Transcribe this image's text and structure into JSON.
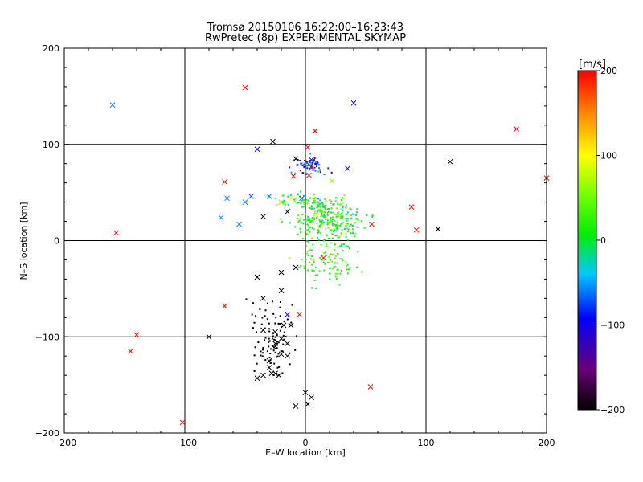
{
  "chart_data": {
    "type": "scatter",
    "title": "Tromsø 20150106 16:22:00–16:23:43",
    "subtitle": "RwPretec (8p) EXPERIMENTAL SKYMAP",
    "xlabel": "E–W location [km]",
    "ylabel": "N–S location [km]",
    "xlim": [
      -200,
      200
    ],
    "ylim": [
      -200,
      200
    ],
    "xticks": [
      -200,
      -100,
      0,
      100,
      200
    ],
    "yticks": [
      -200,
      -100,
      0,
      100,
      200
    ],
    "xtick_labels": [
      "−200",
      "−100",
      "0",
      "100",
      "200"
    ],
    "ytick_labels": [
      "200",
      "100",
      "0",
      "−100",
      "−200"
    ],
    "grid": true,
    "colorbar": {
      "label": "[m/s]",
      "min": -200,
      "max": 200,
      "ticks": [
        200,
        100,
        0,
        -100,
        -200
      ],
      "tick_labels": [
        "200",
        "100",
        "0",
        "−100",
        "−200"
      ]
    },
    "cross_points": [
      [
        -50,
        159,
        200
      ],
      [
        -27,
        103,
        -200
      ],
      [
        -40,
        95,
        -100
      ],
      [
        8,
        114,
        200
      ],
      [
        40,
        143,
        -100
      ],
      [
        -160,
        141,
        -60
      ],
      [
        175,
        116,
        200
      ],
      [
        120,
        82,
        -200
      ],
      [
        -8,
        85,
        -200
      ],
      [
        5,
        84,
        -120
      ],
      [
        2,
        97,
        200
      ],
      [
        -67,
        61,
        200
      ],
      [
        -65,
        44,
        -60
      ],
      [
        -45,
        46,
        -70
      ],
      [
        -30,
        46,
        -60
      ],
      [
        -12,
        44,
        100
      ],
      [
        -3,
        44,
        -70
      ],
      [
        -70,
        24,
        -50
      ],
      [
        -55,
        17,
        -60
      ],
      [
        -35,
        25,
        -200
      ],
      [
        -15,
        30,
        -200
      ],
      [
        -50,
        40,
        -60
      ],
      [
        -20,
        40,
        60
      ],
      [
        0,
        40,
        60
      ],
      [
        12,
        38,
        0
      ],
      [
        30,
        38,
        80
      ],
      [
        55,
        17,
        200
      ],
      [
        88,
        35,
        200
      ],
      [
        92,
        11,
        200
      ],
      [
        110,
        12,
        -200
      ],
      [
        -10,
        67,
        200
      ],
      [
        3,
        68,
        200
      ],
      [
        5,
        76,
        200
      ],
      [
        35,
        75,
        -100
      ],
      [
        22,
        62,
        60
      ],
      [
        -157,
        8,
        200
      ],
      [
        15,
        -18,
        200
      ],
      [
        -40,
        -38,
        -200
      ],
      [
        -20,
        -52,
        -200
      ],
      [
        -35,
        -60,
        -200
      ],
      [
        -67,
        -68,
        200
      ],
      [
        -15,
        -77,
        -100
      ],
      [
        -5,
        -77,
        200
      ],
      [
        -18,
        -88,
        -200
      ],
      [
        -12,
        -88,
        -200
      ],
      [
        -25,
        -95,
        -200
      ],
      [
        -35,
        -93,
        -200
      ],
      [
        -20,
        -102,
        -200
      ],
      [
        -25,
        -107,
        -200
      ],
      [
        -15,
        -107,
        -200
      ],
      [
        -140,
        -98,
        200
      ],
      [
        -80,
        -100,
        -200
      ],
      [
        -145,
        -115,
        200
      ],
      [
        -20,
        -118,
        -200
      ],
      [
        -15,
        -120,
        -200
      ],
      [
        -30,
        -125,
        -200
      ],
      [
        -30,
        -132,
        -200
      ],
      [
        -25,
        -138,
        -200
      ],
      [
        -22,
        -140,
        -200
      ],
      [
        -28,
        -138,
        -200
      ],
      [
        -35,
        -140,
        -200
      ],
      [
        -40,
        -143,
        -200
      ],
      [
        0,
        -158,
        -200
      ],
      [
        5,
        -163,
        -200
      ],
      [
        -8,
        -172,
        -200
      ],
      [
        2,
        -170,
        -200
      ],
      [
        54,
        -152,
        200
      ],
      [
        -102,
        -189,
        200
      ],
      [
        200,
        65,
        200
      ],
      [
        -8,
        -28,
        -200
      ],
      [
        -20,
        -33,
        -200
      ]
    ]
  }
}
